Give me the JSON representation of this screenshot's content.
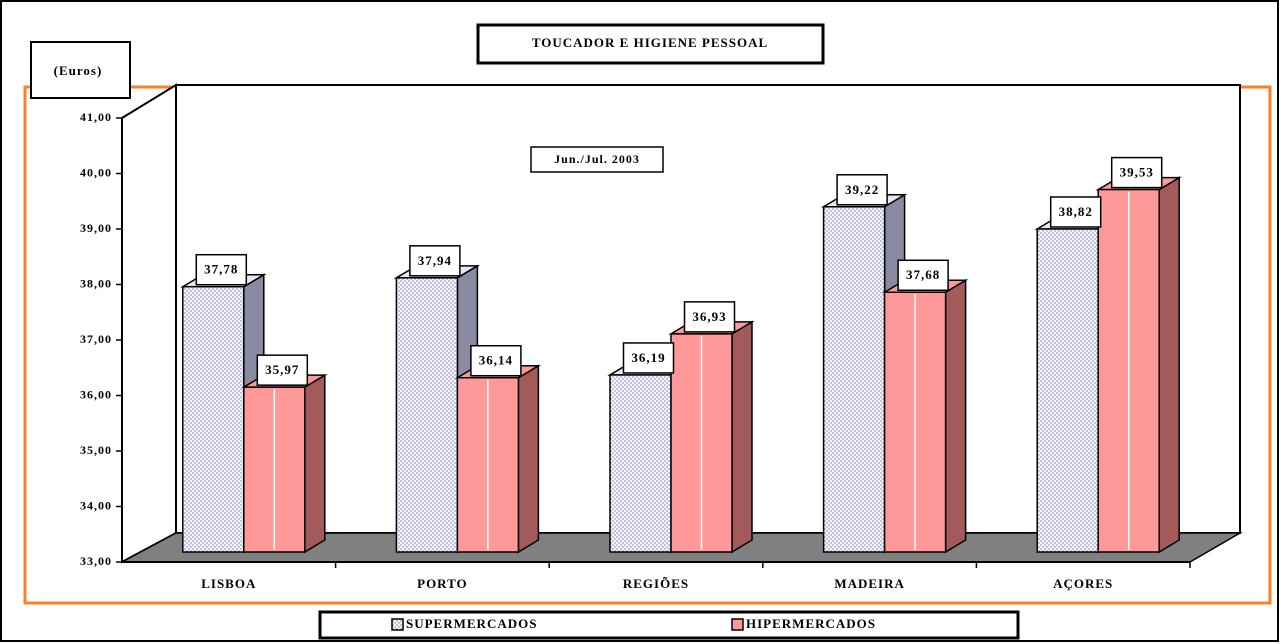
{
  "chart_data": {
    "type": "bar3d",
    "title": "TOUCADOR E HIGIENE PESSOAL",
    "y_axis_label": "(Euros)",
    "annotation": "Jun./Jul. 2003",
    "categories": [
      "LISBOA",
      "PORTO",
      "REGIÕES",
      "MADEIRA",
      "AÇORES"
    ],
    "series": [
      {
        "name": "SUPERMERCADOS",
        "color": "#e6e6f7",
        "side_color": "#8a8aa0",
        "values": [
          37.78,
          37.94,
          36.19,
          39.22,
          38.82
        ],
        "value_labels": [
          "37,78",
          "37,94",
          "36,19",
          "39,22",
          "38,82"
        ]
      },
      {
        "name": "HIPERMERCADOS",
        "color": "#ff9999",
        "side_color": "#a35a5a",
        "values": [
          35.97,
          36.14,
          36.93,
          37.68,
          39.53
        ],
        "value_labels": [
          "35,97",
          "36,14",
          "36,93",
          "37,68",
          "39,53"
        ]
      }
    ],
    "ylim": [
      33,
      41
    ],
    "yticks": [
      {
        "value": 33,
        "label": "33,00"
      },
      {
        "value": 34,
        "label": "34,00"
      },
      {
        "value": 35,
        "label": "35,00"
      },
      {
        "value": 36,
        "label": "36,00"
      },
      {
        "value": 37,
        "label": "37,00"
      },
      {
        "value": 38,
        "label": "38,00"
      },
      {
        "value": 39,
        "label": "39,00"
      },
      {
        "value": 40,
        "label": "40,00"
      },
      {
        "value": 41,
        "label": "41,00"
      }
    ],
    "grid": false
  }
}
